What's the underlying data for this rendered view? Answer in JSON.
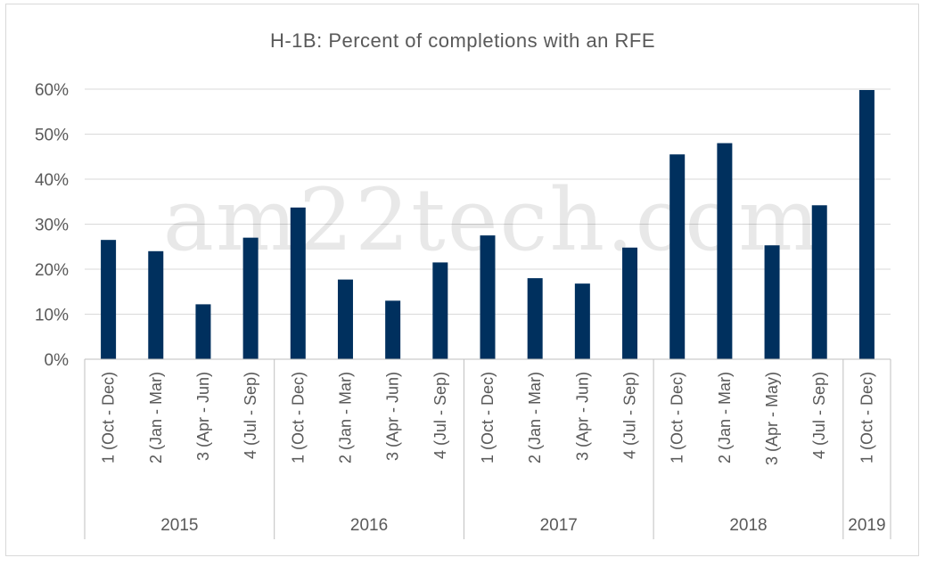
{
  "chart_data": {
    "type": "bar",
    "title": "H-1B: Percent of completions with an RFE",
    "xlabel": "",
    "ylabel": "",
    "ylim": [
      0,
      0.6
    ],
    "yticks": [
      0,
      0.1,
      0.2,
      0.3,
      0.4,
      0.5,
      0.6
    ],
    "ytick_labels": [
      "0%",
      "10%",
      "20%",
      "30%",
      "40%",
      "50%",
      "60%"
    ],
    "grid": true,
    "legend": "none",
    "bar_color": "#00305e",
    "watermark": "am22tech.com",
    "groups": [
      {
        "year": "2015",
        "quarters": [
          "1 (Oct - Dec)",
          "2 (Jan - Mar)",
          "3 (Apr - Jun)",
          "4 (Jul - Sep)"
        ],
        "values": [
          0.265,
          0.24,
          0.122,
          0.27
        ]
      },
      {
        "year": "2016",
        "quarters": [
          "1 (Oct - Dec)",
          "2 (Jan - Mar)",
          "3 (Apr - Jun)",
          "4 (Jul - Sep)"
        ],
        "values": [
          0.337,
          0.177,
          0.13,
          0.215
        ]
      },
      {
        "year": "2017",
        "quarters": [
          "1 (Oct - Dec)",
          "2 (Jan - Mar)",
          "3 (Apr - Jun)",
          "4 (Jul - Sep)"
        ],
        "values": [
          0.275,
          0.18,
          0.168,
          0.248
        ]
      },
      {
        "year": "2018",
        "quarters": [
          "1 (Oct - Dec)",
          "2 (Jan - Mar)",
          "3 (Apr - May)",
          "4 (Jul - Sep)"
        ],
        "values": [
          0.455,
          0.48,
          0.253,
          0.342
        ]
      },
      {
        "year": "2019",
        "quarters": [
          "1 (Oct - Dec)"
        ],
        "values": [
          0.598
        ]
      }
    ]
  }
}
